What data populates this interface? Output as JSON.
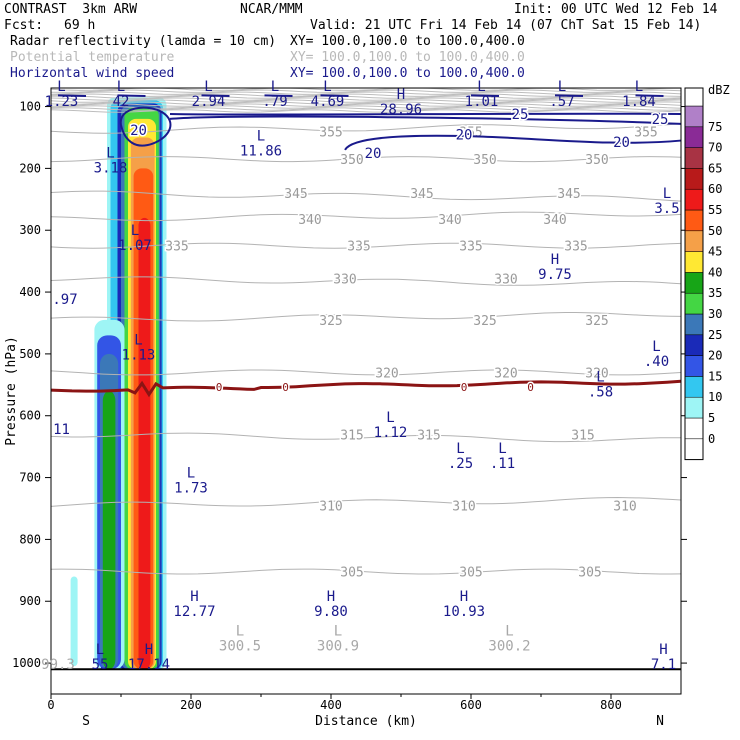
{
  "header": {
    "model": "CONTRAST  3km ARW",
    "org": "NCAR/MMM",
    "init": "Init: 00 UTC Wed 12 Feb 14",
    "fcst_label": "Fcst:",
    "fcst_value": "69 h",
    "valid": "Valid: 21 UTC Fri 14 Feb 14 (07 ChT Sat 15 Feb 14)",
    "fields": [
      {
        "name": "Radar reflectivity (lamda = 10 cm)",
        "xy": "XY= 100.0,100.0 to 100.0,400.0",
        "color": "#000000"
      },
      {
        "name": "Potential temperature",
        "xy": "XY= 100.0,100.0 to 100.0,400.0",
        "color": "#b8b8b8"
      },
      {
        "name": "Horizontal wind speed",
        "xy": "XY= 100.0,100.0 to 100.0,400.0",
        "color": "#1a1a8c"
      }
    ]
  },
  "chart_data": {
    "type": "heatmap",
    "subtype": "vertical cross-section",
    "xlabel": "Distance (km)",
    "ylabel": "Pressure (hPa)",
    "xlim": [
      0,
      900
    ],
    "ylim": [
      1050,
      70
    ],
    "x_ticks": [
      0,
      200,
      400,
      600,
      800
    ],
    "y_ticks": [
      100,
      200,
      300,
      400,
      500,
      600,
      700,
      800,
      900,
      1000
    ],
    "x_end_labels": {
      "left": "S",
      "right": "N"
    },
    "colorbar": {
      "unit": "dBZ",
      "levels": [
        -5,
        0,
        5,
        10,
        15,
        20,
        25,
        30,
        35,
        40,
        45,
        50,
        55,
        60,
        65,
        70,
        75,
        80
      ],
      "tick_labels": [
        0,
        5,
        10,
        15,
        20,
        25,
        30,
        35,
        40,
        45,
        50,
        55,
        60,
        65,
        70,
        75
      ],
      "colors": [
        "#ffffff",
        "#ffffff",
        "#9ef5f5",
        "#33c7f0",
        "#3355e6",
        "#1a2ab8",
        "#3b78b8",
        "#44d644",
        "#17a517",
        "#ffe833",
        "#f5a048",
        "#ff5a14",
        "#ee1a1a",
        "#b81a1a",
        "#a83344",
        "#8a2b96",
        "#b080c8"
      ]
    },
    "theta_contours": [
      {
        "value": 355,
        "p": 140,
        "labels_km": [
          400,
          600,
          850
        ]
      },
      {
        "value": 350,
        "p": 185,
        "labels_km": [
          430,
          620,
          780
        ]
      },
      {
        "value": 345,
        "p": 240,
        "labels_km": [
          350,
          530,
          740
        ]
      },
      {
        "value": 340,
        "p": 282,
        "labels_km": [
          370,
          570,
          720
        ]
      },
      {
        "value": 335,
        "p": 325,
        "labels_km": [
          180,
          440,
          600,
          750
        ]
      },
      {
        "value": 330,
        "p": 378,
        "labels_km": [
          420,
          650
        ]
      },
      {
        "value": 325,
        "p": 445,
        "labels_km": [
          400,
          620,
          780
        ]
      },
      {
        "value": 320,
        "p": 530,
        "labels_km": [
          480,
          650,
          780
        ]
      },
      {
        "value": 315,
        "p": 630,
        "labels_km": [
          430,
          540,
          760
        ]
      },
      {
        "value": 310,
        "p": 745,
        "labels_km": [
          400,
          590,
          820
        ]
      },
      {
        "value": 305,
        "p": 852,
        "labels_km": [
          430,
          600,
          770
        ]
      }
    ],
    "wind_contours": [
      {
        "value": 25,
        "labels": [
          "25",
          "25"
        ]
      },
      {
        "value": 20,
        "labels": [
          "20",
          "20",
          "20",
          "20"
        ]
      }
    ],
    "freezing_level": {
      "value": "0",
      "p": 552,
      "labels": [
        "0",
        "0",
        "0",
        "0"
      ]
    },
    "cross_markers": [
      {
        "type": "L",
        "value": "1.23",
        "x": 15,
        "p": 75
      },
      {
        "type": "L",
        "value": "42",
        "x": 100,
        "p": 75
      },
      {
        "type": "L",
        "value": "2.94",
        "x": 225,
        "p": 75
      },
      {
        "type": "L",
        "value": ".79",
        "x": 320,
        "p": 75
      },
      {
        "type": "L",
        "value": "4.69",
        "x": 395,
        "p": 75
      },
      {
        "type": "L",
        "value": "1.01",
        "x": 615,
        "p": 75
      },
      {
        "type": "L",
        "value": ".57",
        "x": 730,
        "p": 75
      },
      {
        "type": "L",
        "value": "1.84",
        "x": 840,
        "p": 75
      },
      {
        "type": "H",
        "value": "28.96",
        "x": 500,
        "p": 88
      },
      {
        "type": "L",
        "value": "11.86",
        "x": 300,
        "p": 155
      },
      {
        "type": "L",
        "value": "3.18",
        "x": 85,
        "p": 182
      },
      {
        "type": "L",
        "value": "3.5",
        "x": 880,
        "p": 248
      },
      {
        "type": "L",
        "value": "1.07",
        "x": 120,
        "p": 308
      },
      {
        "type": "H",
        "value": "9.75",
        "x": 720,
        "p": 355
      },
      {
        "type": "",
        "value": ".97",
        "x": 20,
        "p": 395
      },
      {
        "type": "L",
        "value": "1.13",
        "x": 125,
        "p": 485
      },
      {
        "type": "L",
        "value": ".40",
        "x": 865,
        "p": 495
      },
      {
        "type": "L",
        "value": ".58",
        "x": 785,
        "p": 545
      },
      {
        "type": "",
        "value": "11",
        "x": 15,
        "p": 605
      },
      {
        "type": "L",
        "value": "1.12",
        "x": 485,
        "p": 610
      },
      {
        "type": "L",
        "value": ".25",
        "x": 585,
        "p": 660
      },
      {
        "type": "L",
        "value": ".11",
        "x": 645,
        "p": 660
      },
      {
        "type": "L",
        "value": "1.73",
        "x": 200,
        "p": 700
      },
      {
        "type": "H",
        "value": "12.77",
        "x": 205,
        "p": 900
      },
      {
        "type": "H",
        "value": "9.80",
        "x": 400,
        "p": 900
      },
      {
        "type": "H",
        "value": "10.93",
        "x": 590,
        "p": 900
      },
      {
        "type": "L",
        "value": "300.5",
        "x": 270,
        "p": 955
      },
      {
        "type": "L",
        "value": "300.9",
        "x": 410,
        "p": 955
      },
      {
        "type": "L",
        "value": "300.2",
        "x": 655,
        "p": 955
      },
      {
        "type": "H",
        "value": "17.14",
        "x": 140,
        "p": 985
      },
      {
        "type": "L",
        "value": "55",
        "x": 70,
        "p": 985
      },
      {
        "type": "",
        "value": "99.3",
        "x": 10,
        "p": 985
      },
      {
        "type": "H",
        "value": "7.1",
        "x": 875,
        "p": 985
      }
    ]
  }
}
